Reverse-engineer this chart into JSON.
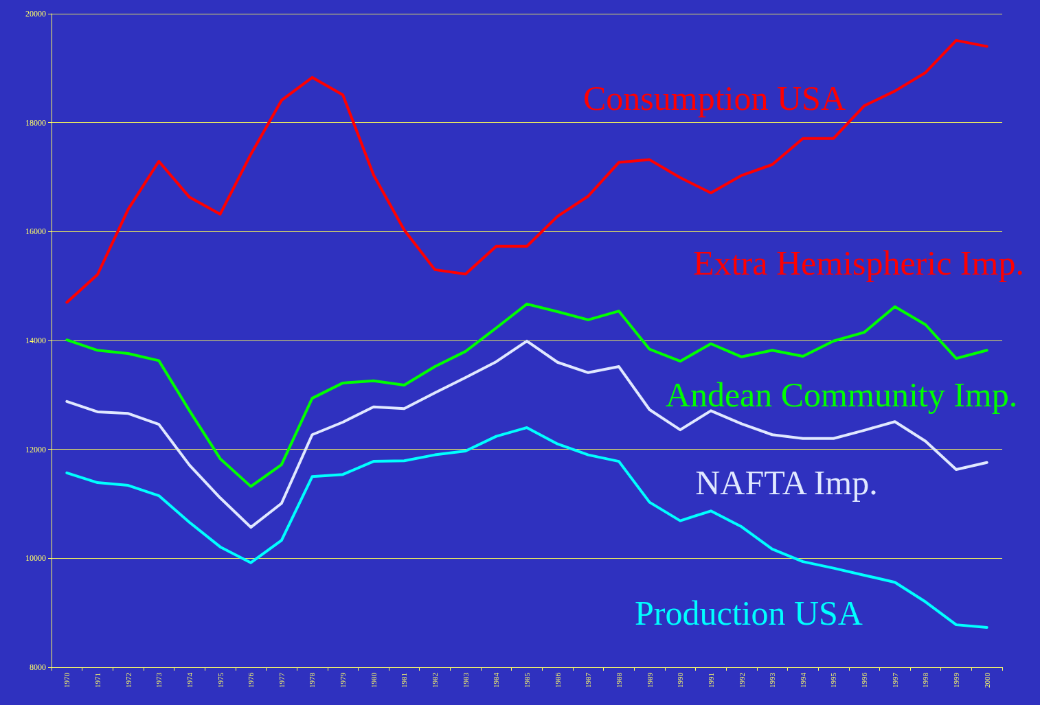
{
  "chart_data": {
    "type": "line",
    "categories": [
      "1970",
      "1971",
      "1972",
      "1973",
      "1974",
      "1975",
      "1976",
      "1977",
      "1978",
      "1979",
      "1980",
      "1981",
      "1982",
      "1983",
      "1984",
      "1985",
      "1986",
      "1987",
      "1988",
      "1989",
      "1990",
      "1991",
      "1992",
      "1993",
      "1994",
      "1995",
      "1996",
      "1997",
      "1998",
      "1999",
      "2000"
    ],
    "series": [
      {
        "name": "Consumption USA",
        "color": "#ff0000",
        "values": [
          14700,
          15210,
          16410,
          17290,
          16630,
          16320,
          17420,
          18410,
          18830,
          18510,
          17040,
          16030,
          15300,
          15220,
          15730,
          15730,
          16280,
          16650,
          17270,
          17320,
          16990,
          16710,
          17030,
          17230,
          17710,
          17710,
          18310,
          18580,
          18920,
          19510,
          19400
        ]
      },
      {
        "name": "Andean Community Imp.",
        "color": "#00ff00",
        "values": [
          14010,
          13820,
          13760,
          13630,
          12710,
          11830,
          11320,
          11720,
          12940,
          13220,
          13260,
          13180,
          13520,
          13800,
          14230,
          14670,
          14530,
          14380,
          14540,
          13840,
          13620,
          13940,
          13700,
          13820,
          13710,
          13990,
          14150,
          14620,
          14290,
          13670,
          13820
        ]
      },
      {
        "name": "NAFTA Imp.",
        "color": "#e0e8ff",
        "values": [
          12880,
          12690,
          12660,
          12460,
          11710,
          11110,
          10570,
          11010,
          12270,
          12500,
          12780,
          12750,
          13040,
          13320,
          13610,
          13990,
          13600,
          13410,
          13520,
          12730,
          12360,
          12710,
          12470,
          12270,
          12200,
          12200,
          12350,
          12510,
          12150,
          11630,
          11760
        ]
      },
      {
        "name": "Production USA",
        "color": "#00ffff",
        "values": [
          11570,
          11390,
          11340,
          11150,
          10660,
          10210,
          9920,
          10330,
          11500,
          11540,
          11780,
          11790,
          11900,
          11970,
          12240,
          12400,
          12100,
          11900,
          11780,
          11030,
          10690,
          10870,
          10580,
          10170,
          9940,
          9820,
          9690,
          9560,
          9200,
          8780,
          8730
        ]
      }
    ],
    "annotations": [
      "Extra Hemispheric Imp."
    ],
    "ylim": [
      8000,
      20000
    ],
    "yticks": [
      8000,
      10000,
      12000,
      14000,
      16000,
      18000,
      20000
    ],
    "grid": "y",
    "legend": false,
    "marker": "none",
    "line_style": "solid"
  }
}
